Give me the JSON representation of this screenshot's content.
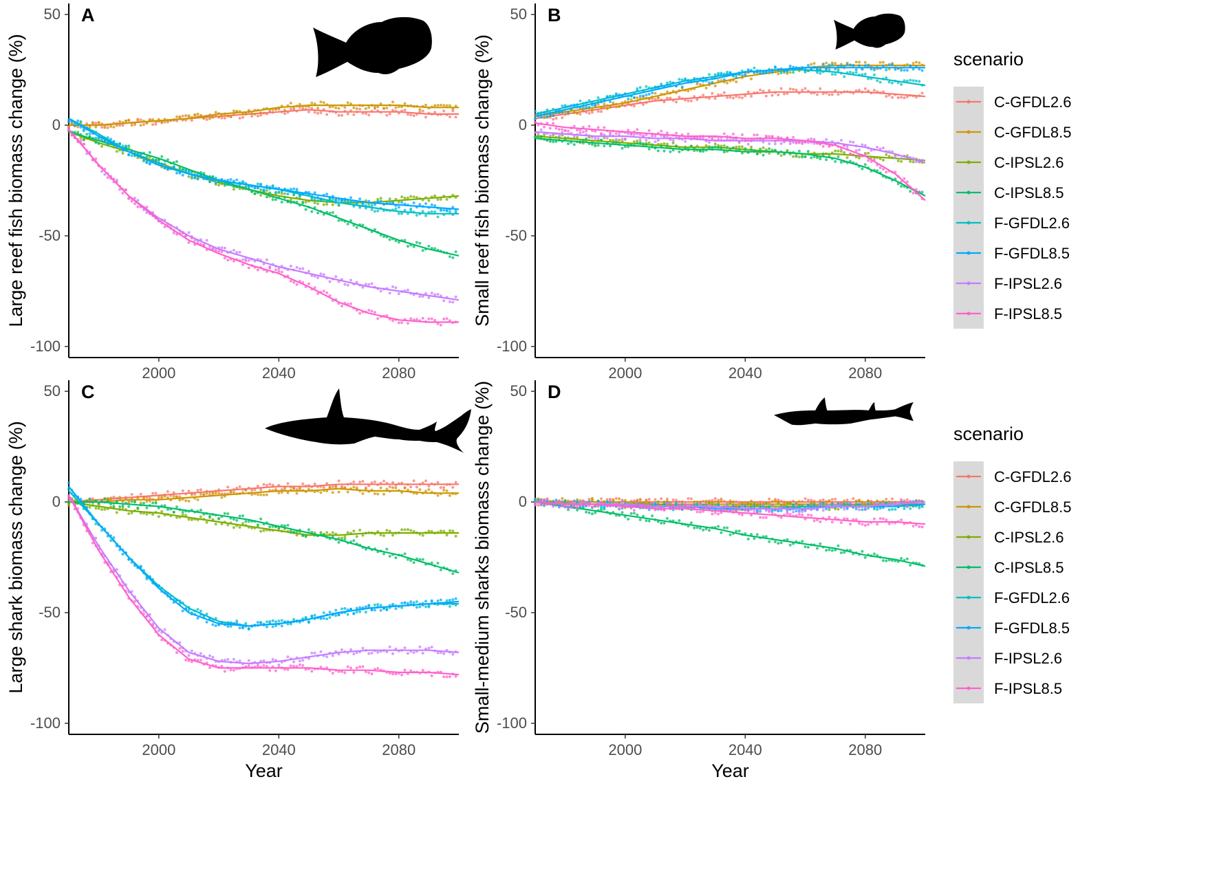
{
  "figure": {
    "scenario_names": [
      "C-GFDL2.6",
      "C-GFDL8.5",
      "C-IPSL2.6",
      "C-IPSL8.5",
      "F-GFDL2.6",
      "F-GFDL8.5",
      "F-IPSL2.6",
      "F-IPSL8.5"
    ],
    "colors": {
      "C-GFDL2.6": "#F8766D",
      "C-GFDL8.5": "#CD9600",
      "C-IPSL2.6": "#7CAE00",
      "C-IPSL8.5": "#00BE67",
      "F-GFDL2.6": "#00BFC4",
      "F-GFDL8.5": "#00A9FF",
      "F-IPSL2.6": "#C77CFF",
      "F-IPSL8.5": "#FF61CC"
    },
    "legend_title": "scenario"
  },
  "chart_data": [
    {
      "type": "line",
      "panel": "A",
      "title": "",
      "xlabel": "",
      "ylabel": "Large reef fish biomass change (%)",
      "xlim": [
        1970,
        2100
      ],
      "ylim": [
        -105,
        55
      ],
      "x_ticks": [
        2000,
        2040,
        2080
      ],
      "y_ticks": [
        50,
        0,
        -50,
        -100
      ],
      "x": [
        1970,
        1980,
        1990,
        2000,
        2010,
        2020,
        2030,
        2040,
        2050,
        2060,
        2070,
        2080,
        2090,
        2100
      ],
      "series": [
        {
          "name": "C-GFDL2.6",
          "values": [
            0,
            0,
            1,
            2,
            3,
            4,
            5,
            6,
            7,
            6,
            6,
            6,
            5,
            5
          ]
        },
        {
          "name": "C-GFDL8.5",
          "values": [
            0,
            0,
            1,
            2,
            3,
            5,
            6,
            8,
            9,
            9,
            9,
            9,
            8,
            8
          ]
        },
        {
          "name": "C-IPSL2.6",
          "values": [
            -3,
            -8,
            -12,
            -17,
            -22,
            -26,
            -29,
            -32,
            -34,
            -35,
            -35,
            -34,
            -33,
            -32
          ]
        },
        {
          "name": "C-IPSL8.5",
          "values": [
            -3,
            -7,
            -11,
            -15,
            -20,
            -25,
            -29,
            -33,
            -37,
            -42,
            -47,
            -52,
            -56,
            -59
          ]
        },
        {
          "name": "F-GFDL2.6",
          "values": [
            3,
            -4,
            -12,
            -18,
            -22,
            -25,
            -27,
            -29,
            -32,
            -35,
            -37,
            -39,
            -40,
            -40
          ]
        },
        {
          "name": "F-GFDL8.5",
          "values": [
            3,
            -5,
            -12,
            -18,
            -22,
            -25,
            -27,
            -29,
            -31,
            -33,
            -35,
            -36,
            -37,
            -38
          ]
        },
        {
          "name": "F-IPSL2.6",
          "values": [
            -2,
            -18,
            -32,
            -42,
            -50,
            -56,
            -60,
            -64,
            -67,
            -70,
            -73,
            -75,
            -77,
            -79
          ]
        },
        {
          "name": "F-IPSL8.5",
          "values": [
            -2,
            -18,
            -32,
            -43,
            -52,
            -58,
            -63,
            -67,
            -73,
            -80,
            -85,
            -88,
            -89,
            -89
          ]
        }
      ]
    },
    {
      "type": "line",
      "panel": "B",
      "title": "",
      "xlabel": "",
      "ylabel": "Small reef fish biomass change (%)",
      "xlim": [
        1970,
        2100
      ],
      "ylim": [
        -105,
        55
      ],
      "x_ticks": [
        2000,
        2040,
        2080
      ],
      "y_ticks": [
        50,
        0,
        -50,
        -100
      ],
      "x": [
        1970,
        1980,
        1990,
        2000,
        2010,
        2020,
        2030,
        2040,
        2050,
        2060,
        2070,
        2080,
        2090,
        2100
      ],
      "series": [
        {
          "name": "C-GFDL2.6",
          "values": [
            3,
            5,
            7,
            9,
            11,
            12,
            13,
            14,
            15,
            15,
            15,
            15,
            14,
            13
          ]
        },
        {
          "name": "C-GFDL8.5",
          "values": [
            4,
            6,
            8,
            10,
            13,
            16,
            19,
            22,
            24,
            26,
            27,
            27,
            27,
            27
          ]
        },
        {
          "name": "C-IPSL2.6",
          "values": [
            -5,
            -6,
            -7,
            -8,
            -9,
            -10,
            -10,
            -11,
            -12,
            -13,
            -13,
            -14,
            -15,
            -16
          ]
        },
        {
          "name": "C-IPSL8.5",
          "values": [
            -6,
            -7,
            -8,
            -9,
            -10,
            -11,
            -11,
            -12,
            -12,
            -13,
            -15,
            -19,
            -25,
            -32
          ]
        },
        {
          "name": "F-GFDL2.6",
          "values": [
            5,
            8,
            11,
            14,
            17,
            20,
            22,
            24,
            25,
            25,
            24,
            22,
            20,
            18
          ]
        },
        {
          "name": "F-GFDL8.5",
          "values": [
            4,
            7,
            10,
            13,
            16,
            19,
            21,
            24,
            25,
            26,
            26,
            26,
            26,
            26
          ]
        },
        {
          "name": "F-IPSL2.6",
          "values": [
            -3,
            -4,
            -5,
            -5,
            -6,
            -6,
            -7,
            -7,
            -7,
            -7,
            -8,
            -10,
            -13,
            -17
          ]
        },
        {
          "name": "F-IPSL8.5",
          "values": [
            1,
            -1,
            -2,
            -3,
            -4,
            -5,
            -5,
            -6,
            -6,
            -7,
            -9,
            -14,
            -22,
            -34
          ]
        }
      ]
    },
    {
      "type": "line",
      "panel": "C",
      "title": "",
      "xlabel": "Year",
      "ylabel": "Large shark biomass change (%)",
      "xlim": [
        1970,
        2100
      ],
      "ylim": [
        -105,
        55
      ],
      "x_ticks": [
        2000,
        2040,
        2080
      ],
      "y_ticks": [
        50,
        0,
        -50,
        -100
      ],
      "x": [
        1970,
        1980,
        1990,
        2000,
        2010,
        2020,
        2030,
        2040,
        2050,
        2060,
        2070,
        2080,
        2090,
        2100
      ],
      "series": [
        {
          "name": "C-GFDL2.6",
          "values": [
            0,
            1,
            2,
            3,
            4,
            5,
            6,
            7,
            7,
            8,
            8,
            8,
            8,
            8
          ]
        },
        {
          "name": "C-GFDL8.5",
          "values": [
            0,
            0,
            1,
            1,
            2,
            3,
            4,
            5,
            5,
            6,
            5,
            5,
            4,
            4
          ]
        },
        {
          "name": "C-IPSL2.6",
          "values": [
            0,
            -2,
            -4,
            -5,
            -7,
            -9,
            -11,
            -13,
            -15,
            -15,
            -14,
            -14,
            -14,
            -14
          ]
        },
        {
          "name": "C-IPSL8.5",
          "values": [
            0,
            0,
            -1,
            -2,
            -4,
            -6,
            -8,
            -11,
            -14,
            -17,
            -21,
            -24,
            -28,
            -32
          ]
        },
        {
          "name": "F-GFDL2.6",
          "values": [
            5,
            -10,
            -25,
            -38,
            -48,
            -54,
            -56,
            -55,
            -53,
            -50,
            -48,
            -47,
            -46,
            -46
          ]
        },
        {
          "name": "F-GFDL8.5",
          "values": [
            7,
            -10,
            -25,
            -39,
            -50,
            -55,
            -56,
            -55,
            -53,
            -50,
            -48,
            -47,
            -46,
            -45
          ]
        },
        {
          "name": "F-IPSL2.6",
          "values": [
            3,
            -20,
            -40,
            -57,
            -68,
            -72,
            -73,
            -72,
            -70,
            -68,
            -67,
            -67,
            -67,
            -68
          ]
        },
        {
          "name": "F-IPSL8.5",
          "values": [
            3,
            -22,
            -43,
            -60,
            -71,
            -75,
            -75,
            -75,
            -75,
            -76,
            -76,
            -77,
            -77,
            -78
          ]
        }
      ]
    },
    {
      "type": "line",
      "panel": "D",
      "title": "",
      "xlabel": "Year",
      "ylabel": "Small-medium sharks biomass change (%)",
      "xlim": [
        1970,
        2100
      ],
      "ylim": [
        -105,
        55
      ],
      "x_ticks": [
        2000,
        2040,
        2080
      ],
      "y_ticks": [
        50,
        0,
        -50,
        -100
      ],
      "x": [
        1970,
        1980,
        1990,
        2000,
        2010,
        2020,
        2030,
        2040,
        2050,
        2060,
        2070,
        2080,
        2090,
        2100
      ],
      "series": [
        {
          "name": "C-GFDL2.6",
          "values": [
            0,
            0,
            0,
            0,
            0,
            0,
            0,
            0,
            0,
            0,
            0,
            0,
            0,
            0
          ]
        },
        {
          "name": "C-GFDL8.5",
          "values": [
            0,
            0,
            0,
            0,
            -1,
            -1,
            -1,
            -1,
            -1,
            -1,
            -1,
            -1,
            -1,
            -1
          ]
        },
        {
          "name": "C-IPSL2.6",
          "values": [
            0,
            -1,
            -1,
            -1,
            -1,
            -2,
            -2,
            -2,
            -2,
            -2,
            -2,
            -1,
            -1,
            -1
          ]
        },
        {
          "name": "C-IPSL8.5",
          "values": [
            0,
            -2,
            -4,
            -6,
            -8,
            -10,
            -12,
            -15,
            -17,
            -19,
            -21,
            -24,
            -26,
            -29
          ]
        },
        {
          "name": "F-GFDL2.6",
          "values": [
            0,
            -1,
            -1,
            -2,
            -2,
            -2,
            -3,
            -3,
            -3,
            -2,
            -2,
            -2,
            -2,
            -1
          ]
        },
        {
          "name": "F-GFDL8.5",
          "values": [
            0,
            -1,
            -1,
            -2,
            -2,
            -2,
            -3,
            -3,
            -3,
            -3,
            -2,
            -2,
            -2,
            -1
          ]
        },
        {
          "name": "F-IPSL2.6",
          "values": [
            0,
            -1,
            -1,
            -1,
            -2,
            -2,
            -2,
            -3,
            -3,
            -3,
            -2,
            -2,
            -1,
            0
          ]
        },
        {
          "name": "F-IPSL8.5",
          "values": [
            0,
            -1,
            -1,
            -2,
            -3,
            -3,
            -4,
            -5,
            -6,
            -7,
            -8,
            -9,
            -9,
            -10
          ]
        }
      ]
    }
  ]
}
